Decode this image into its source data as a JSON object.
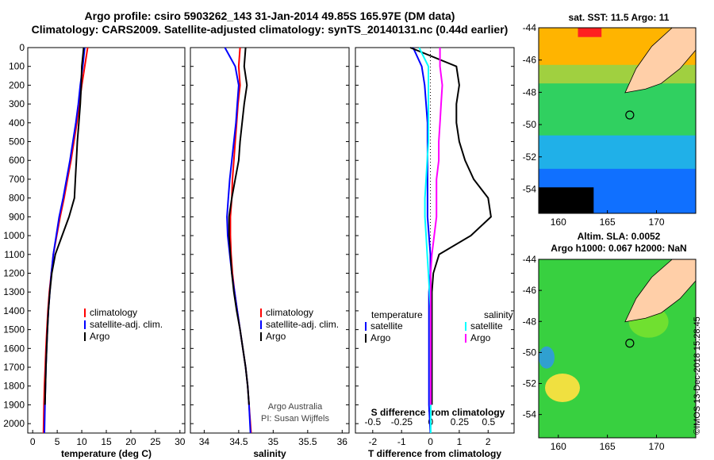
{
  "header": {
    "line1": "Argo profile: csiro 5903262_143 31-Jan-2014 49.85S 165.97E (DM data)",
    "line2": "Climatology: CARS2009. Satellite-adjusted climatology: synTS_20140131.nc (0.44d earlier)"
  },
  "maps": {
    "sst_title": "sat. SST: 11.5 Argo: 11",
    "sla_title1": "Altim. SLA: 0.0052",
    "sla_title2": "Argo h1000: 0.067 h2000: NaN",
    "lat_ticks": [
      "-44",
      "-46",
      "-48",
      "-50",
      "-52",
      "-54"
    ],
    "lon_ticks": [
      "160",
      "165",
      "170"
    ],
    "colors": {
      "sst_warm": "#ffb400",
      "sst_mid": "#30d060",
      "sst_cold": "#1070ff",
      "sla_bg": "#38d040",
      "land": "#ffcfa8"
    }
  },
  "footer_stamp": "©IMOS 13-Dec-2018 15:28:45",
  "credit": {
    "line1": "Argo Australia",
    "line2": "PI: Susan Wijffels"
  },
  "colors": {
    "climatology": "#ff0000",
    "satellite": "#0000ff",
    "argo": "#000000",
    "sat_sal": "#00ffff",
    "argo_sal": "#ff00ff"
  },
  "chart_data": [
    {
      "type": "line",
      "xlabel": "temperature (deg C)",
      "ylabel": "",
      "xlim": [
        -1,
        31
      ],
      "ylim": [
        2050,
        0
      ],
      "xticks": [
        "0",
        "5",
        "10",
        "15",
        "20",
        "25",
        "30"
      ],
      "yticks": [
        "0",
        "100",
        "200",
        "300",
        "400",
        "500",
        "600",
        "700",
        "800",
        "900",
        "1000",
        "1100",
        "1200",
        "1300",
        "1400",
        "1500",
        "1600",
        "1700",
        "1800",
        "1900",
        "2000"
      ],
      "legend": [
        "climatology",
        "satellite-adj. clim.",
        "Argo"
      ],
      "series": [
        {
          "name": "climatology",
          "x": [
            11.2,
            10.6,
            10.0,
            9.5,
            9.0,
            8.4,
            7.8,
            7.1,
            6.4,
            5.6,
            4.9,
            4.2,
            3.8,
            3.4,
            3.1,
            2.9,
            2.7,
            2.55,
            2.4,
            2.3,
            2.2
          ],
          "depth": [
            0,
            100,
            200,
            300,
            400,
            500,
            600,
            700,
            800,
            900,
            1000,
            1100,
            1200,
            1300,
            1400,
            1500,
            1600,
            1700,
            1800,
            1900,
            2050
          ]
        },
        {
          "name": "satellite-adj. clim.",
          "x": [
            10.6,
            10.2,
            9.7,
            9.3,
            8.8,
            8.2,
            7.6,
            6.9,
            6.2,
            5.4,
            4.8,
            4.2,
            3.8,
            3.5,
            3.2,
            3.0,
            2.85,
            2.7,
            2.6,
            2.5,
            2.4
          ],
          "depth": [
            0,
            100,
            200,
            300,
            400,
            500,
            600,
            700,
            800,
            900,
            1000,
            1100,
            1200,
            1300,
            1400,
            1500,
            1600,
            1700,
            1800,
            1900,
            2050
          ]
        },
        {
          "name": "Argo",
          "x": [
            10.4,
            10.0,
            9.9,
            9.7,
            9.4,
            9.1,
            8.9,
            8.7,
            8.5,
            7.4,
            6.0,
            4.6,
            3.9,
            3.5,
            3.2,
            3.0,
            2.85,
            2.7,
            2.6,
            2.5
          ],
          "depth": [
            0,
            100,
            200,
            300,
            400,
            500,
            600,
            700,
            800,
            900,
            1000,
            1100,
            1200,
            1300,
            1400,
            1500,
            1600,
            1700,
            1800,
            1900
          ]
        }
      ]
    },
    {
      "type": "line",
      "xlabel": "salinity",
      "ylabel": "",
      "xlim": [
        33.8,
        36.1
      ],
      "ylim": [
        2050,
        0
      ],
      "xticks": [
        "34",
        "34.5",
        "35",
        "35.5",
        "36"
      ],
      "legend": [
        "climatology",
        "satellite-adj. clim.",
        "Argo"
      ],
      "series": [
        {
          "name": "climatology",
          "x": [
            34.52,
            34.5,
            34.52,
            34.49,
            34.47,
            34.45,
            34.43,
            34.41,
            34.4,
            34.38,
            34.38,
            34.39,
            34.41,
            34.44,
            34.48,
            34.52,
            34.56,
            34.6,
            34.63,
            34.65,
            34.68
          ],
          "depth": [
            0,
            100,
            200,
            300,
            400,
            500,
            600,
            700,
            800,
            900,
            1000,
            1100,
            1200,
            1300,
            1400,
            1500,
            1600,
            1700,
            1800,
            1900,
            2050
          ]
        },
        {
          "name": "satellite-adj. clim.",
          "x": [
            34.3,
            34.45,
            34.5,
            34.48,
            34.46,
            34.43,
            34.4,
            34.37,
            34.35,
            34.33,
            34.34,
            34.37,
            34.4,
            34.44,
            34.48,
            34.52,
            34.56,
            34.6,
            34.63,
            34.65,
            34.67
          ],
          "depth": [
            0,
            100,
            200,
            300,
            400,
            500,
            600,
            700,
            800,
            900,
            1000,
            1100,
            1200,
            1300,
            1400,
            1500,
            1600,
            1700,
            1800,
            1900,
            2050
          ]
        },
        {
          "name": "Argo",
          "x": [
            34.6,
            34.58,
            34.62,
            34.58,
            34.55,
            34.52,
            34.5,
            34.45,
            34.4,
            34.36,
            34.36,
            34.38,
            34.4,
            34.43,
            34.47,
            34.52,
            34.56,
            34.6,
            34.63,
            34.65
          ],
          "depth": [
            0,
            100,
            200,
            300,
            400,
            500,
            600,
            700,
            800,
            900,
            1000,
            1100,
            1200,
            1300,
            1400,
            1500,
            1600,
            1700,
            1800,
            1900
          ]
        }
      ]
    },
    {
      "type": "line",
      "xlabel": "T difference from climatology",
      "top_label": "S difference from climatology",
      "ylabel": "",
      "xlim": [
        -2.6,
        2.9
      ],
      "ylim": [
        2050,
        0
      ],
      "xticks": [
        "-2",
        "-1",
        "0",
        "1",
        "2"
      ],
      "xticks_salinity": [
        "-0.5",
        "-0.25",
        "0",
        "0.25",
        "0.5"
      ],
      "legend_temperature": {
        "heading": "temperature",
        "items": [
          "satellite",
          "Argo"
        ]
      },
      "legend_salinity": {
        "heading": "salinity",
        "items": [
          "satellite",
          "Argo"
        ]
      },
      "series": [
        {
          "name": "satellite",
          "group": "temperature",
          "x": [
            -0.6,
            -0.3,
            -0.2,
            -0.15,
            -0.1,
            -0.1,
            -0.1,
            -0.1,
            -0.1,
            -0.1,
            -0.05,
            0,
            0,
            -0.05,
            -0.05,
            -0.05,
            -0.05,
            -0.05,
            -0.05,
            -0.05,
            0
          ],
          "depth": [
            0,
            100,
            200,
            300,
            400,
            500,
            600,
            700,
            800,
            900,
            1000,
            1100,
            1200,
            1300,
            1400,
            1500,
            1600,
            1700,
            1800,
            1900,
            2050
          ]
        },
        {
          "name": "Argo",
          "group": "temperature",
          "x": [
            -0.7,
            0.9,
            1.0,
            0.9,
            0.9,
            1.0,
            1.2,
            1.5,
            2.0,
            2.1,
            1.4,
            0.3,
            0.1,
            0.05,
            0.05,
            0.05,
            0.05,
            0.05,
            0.05,
            0.05
          ],
          "depth": [
            0,
            100,
            200,
            300,
            400,
            500,
            600,
            700,
            800,
            900,
            1000,
            1100,
            1200,
            1300,
            1400,
            1500,
            1600,
            1700,
            1800,
            1900
          ]
        },
        {
          "name": "satellite",
          "group": "salinity",
          "x": [
            -0.1,
            -0.02,
            -0.02,
            -0.02,
            -0.02,
            -0.02,
            -0.03,
            -0.04,
            -0.05,
            -0.05,
            -0.04,
            -0.03,
            -0.02,
            -0.01,
            0,
            0,
            0,
            0,
            0,
            0,
            0
          ],
          "depth": [
            0,
            100,
            200,
            300,
            400,
            500,
            600,
            700,
            800,
            900,
            1000,
            1100,
            1200,
            1300,
            1400,
            1500,
            1600,
            1700,
            1800,
            1900,
            2050
          ]
        },
        {
          "name": "Argo",
          "group": "salinity",
          "x": [
            0.08,
            0.08,
            0.1,
            0.09,
            0.08,
            0.07,
            0.07,
            0.05,
            0.05,
            0.05,
            0.03,
            0.01,
            0,
            0,
            0,
            0,
            0,
            0,
            0,
            0
          ],
          "depth": [
            0,
            100,
            200,
            300,
            400,
            500,
            600,
            700,
            800,
            900,
            1000,
            1100,
            1200,
            1300,
            1400,
            1500,
            1600,
            1700,
            1800,
            1900
          ]
        }
      ]
    }
  ]
}
